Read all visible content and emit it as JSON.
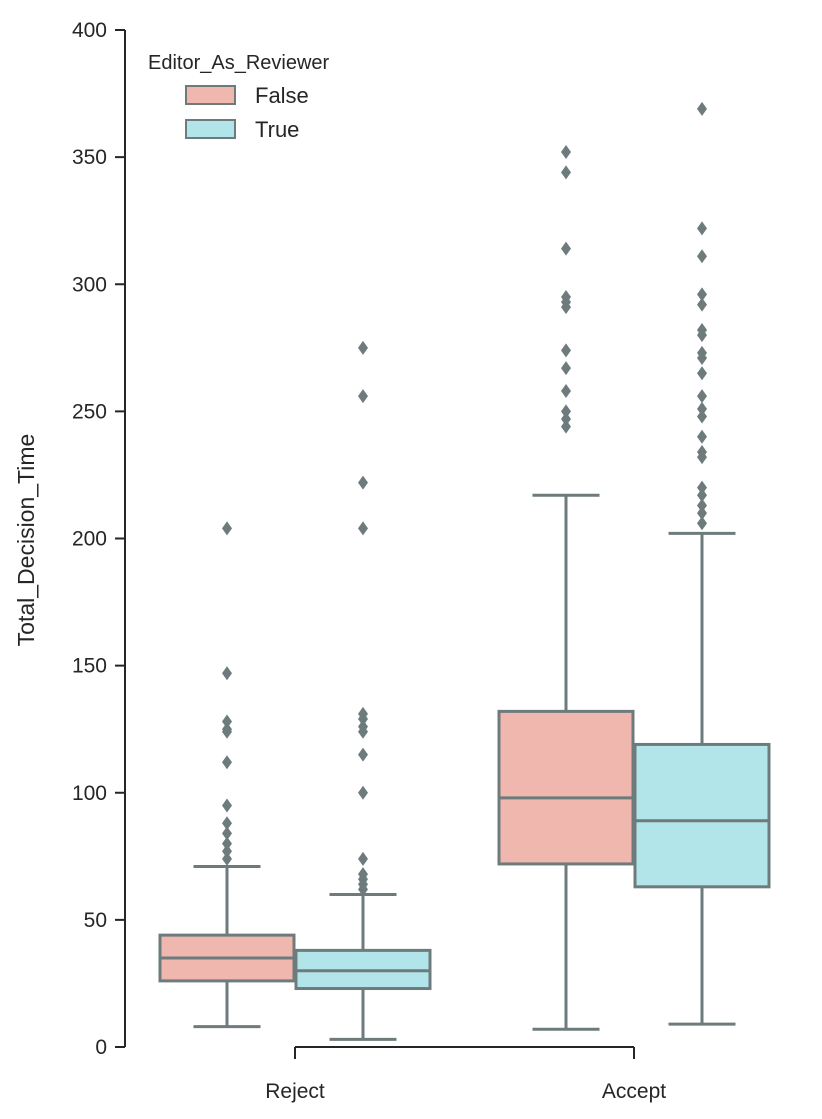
{
  "chart_data": {
    "type": "box",
    "categories": [
      "Reject",
      "Accept"
    ],
    "ylabel": "Total_Decision_Time",
    "xlabel": "",
    "ylim": [
      0,
      400
    ],
    "yticks": [
      0,
      50,
      100,
      150,
      200,
      250,
      300,
      350,
      400
    ],
    "legend": {
      "title": "Editor_As_Reviewer",
      "placement": "top-left",
      "entries": [
        "False",
        "True"
      ]
    },
    "series": [
      {
        "name": "False",
        "color": "#efb7ad",
        "boxes": [
          {
            "category": "Reject",
            "whisker_low": 8,
            "q1": 26,
            "median": 35,
            "q3": 44,
            "whisker_high": 71,
            "outliers": [
              74,
              77,
              80,
              84,
              88,
              95,
              112,
              124,
              125,
              128,
              147,
              204
            ]
          },
          {
            "category": "Accept",
            "whisker_low": 7,
            "q1": 72,
            "median": 98,
            "q3": 132,
            "whisker_high": 217,
            "outliers": [
              244,
              247,
              250,
              258,
              267,
              274,
              291,
              293,
              295,
              314,
              344,
              352
            ]
          }
        ]
      },
      {
        "name": "True",
        "color": "#b1e5ea",
        "boxes": [
          {
            "category": "Reject",
            "whisker_low": 3,
            "q1": 23,
            "median": 30,
            "q3": 38,
            "whisker_high": 60,
            "outliers": [
              62,
              64,
              66,
              68,
              74,
              100,
              115,
              124,
              126,
              129,
              131,
              204,
              222,
              256,
              275
            ]
          },
          {
            "category": "Accept",
            "whisker_low": 9,
            "q1": 63,
            "median": 89,
            "q3": 119,
            "whisker_high": 202,
            "outliers": [
              206,
              210,
              213,
              217,
              220,
              232,
              234,
              240,
              248,
              251,
              256,
              265,
              271,
              273,
              280,
              282,
              292,
              296,
              311,
              322,
              369
            ]
          }
        ]
      }
    ]
  },
  "colors": {
    "line": "#6e7b7d",
    "axis": "#262626"
  }
}
